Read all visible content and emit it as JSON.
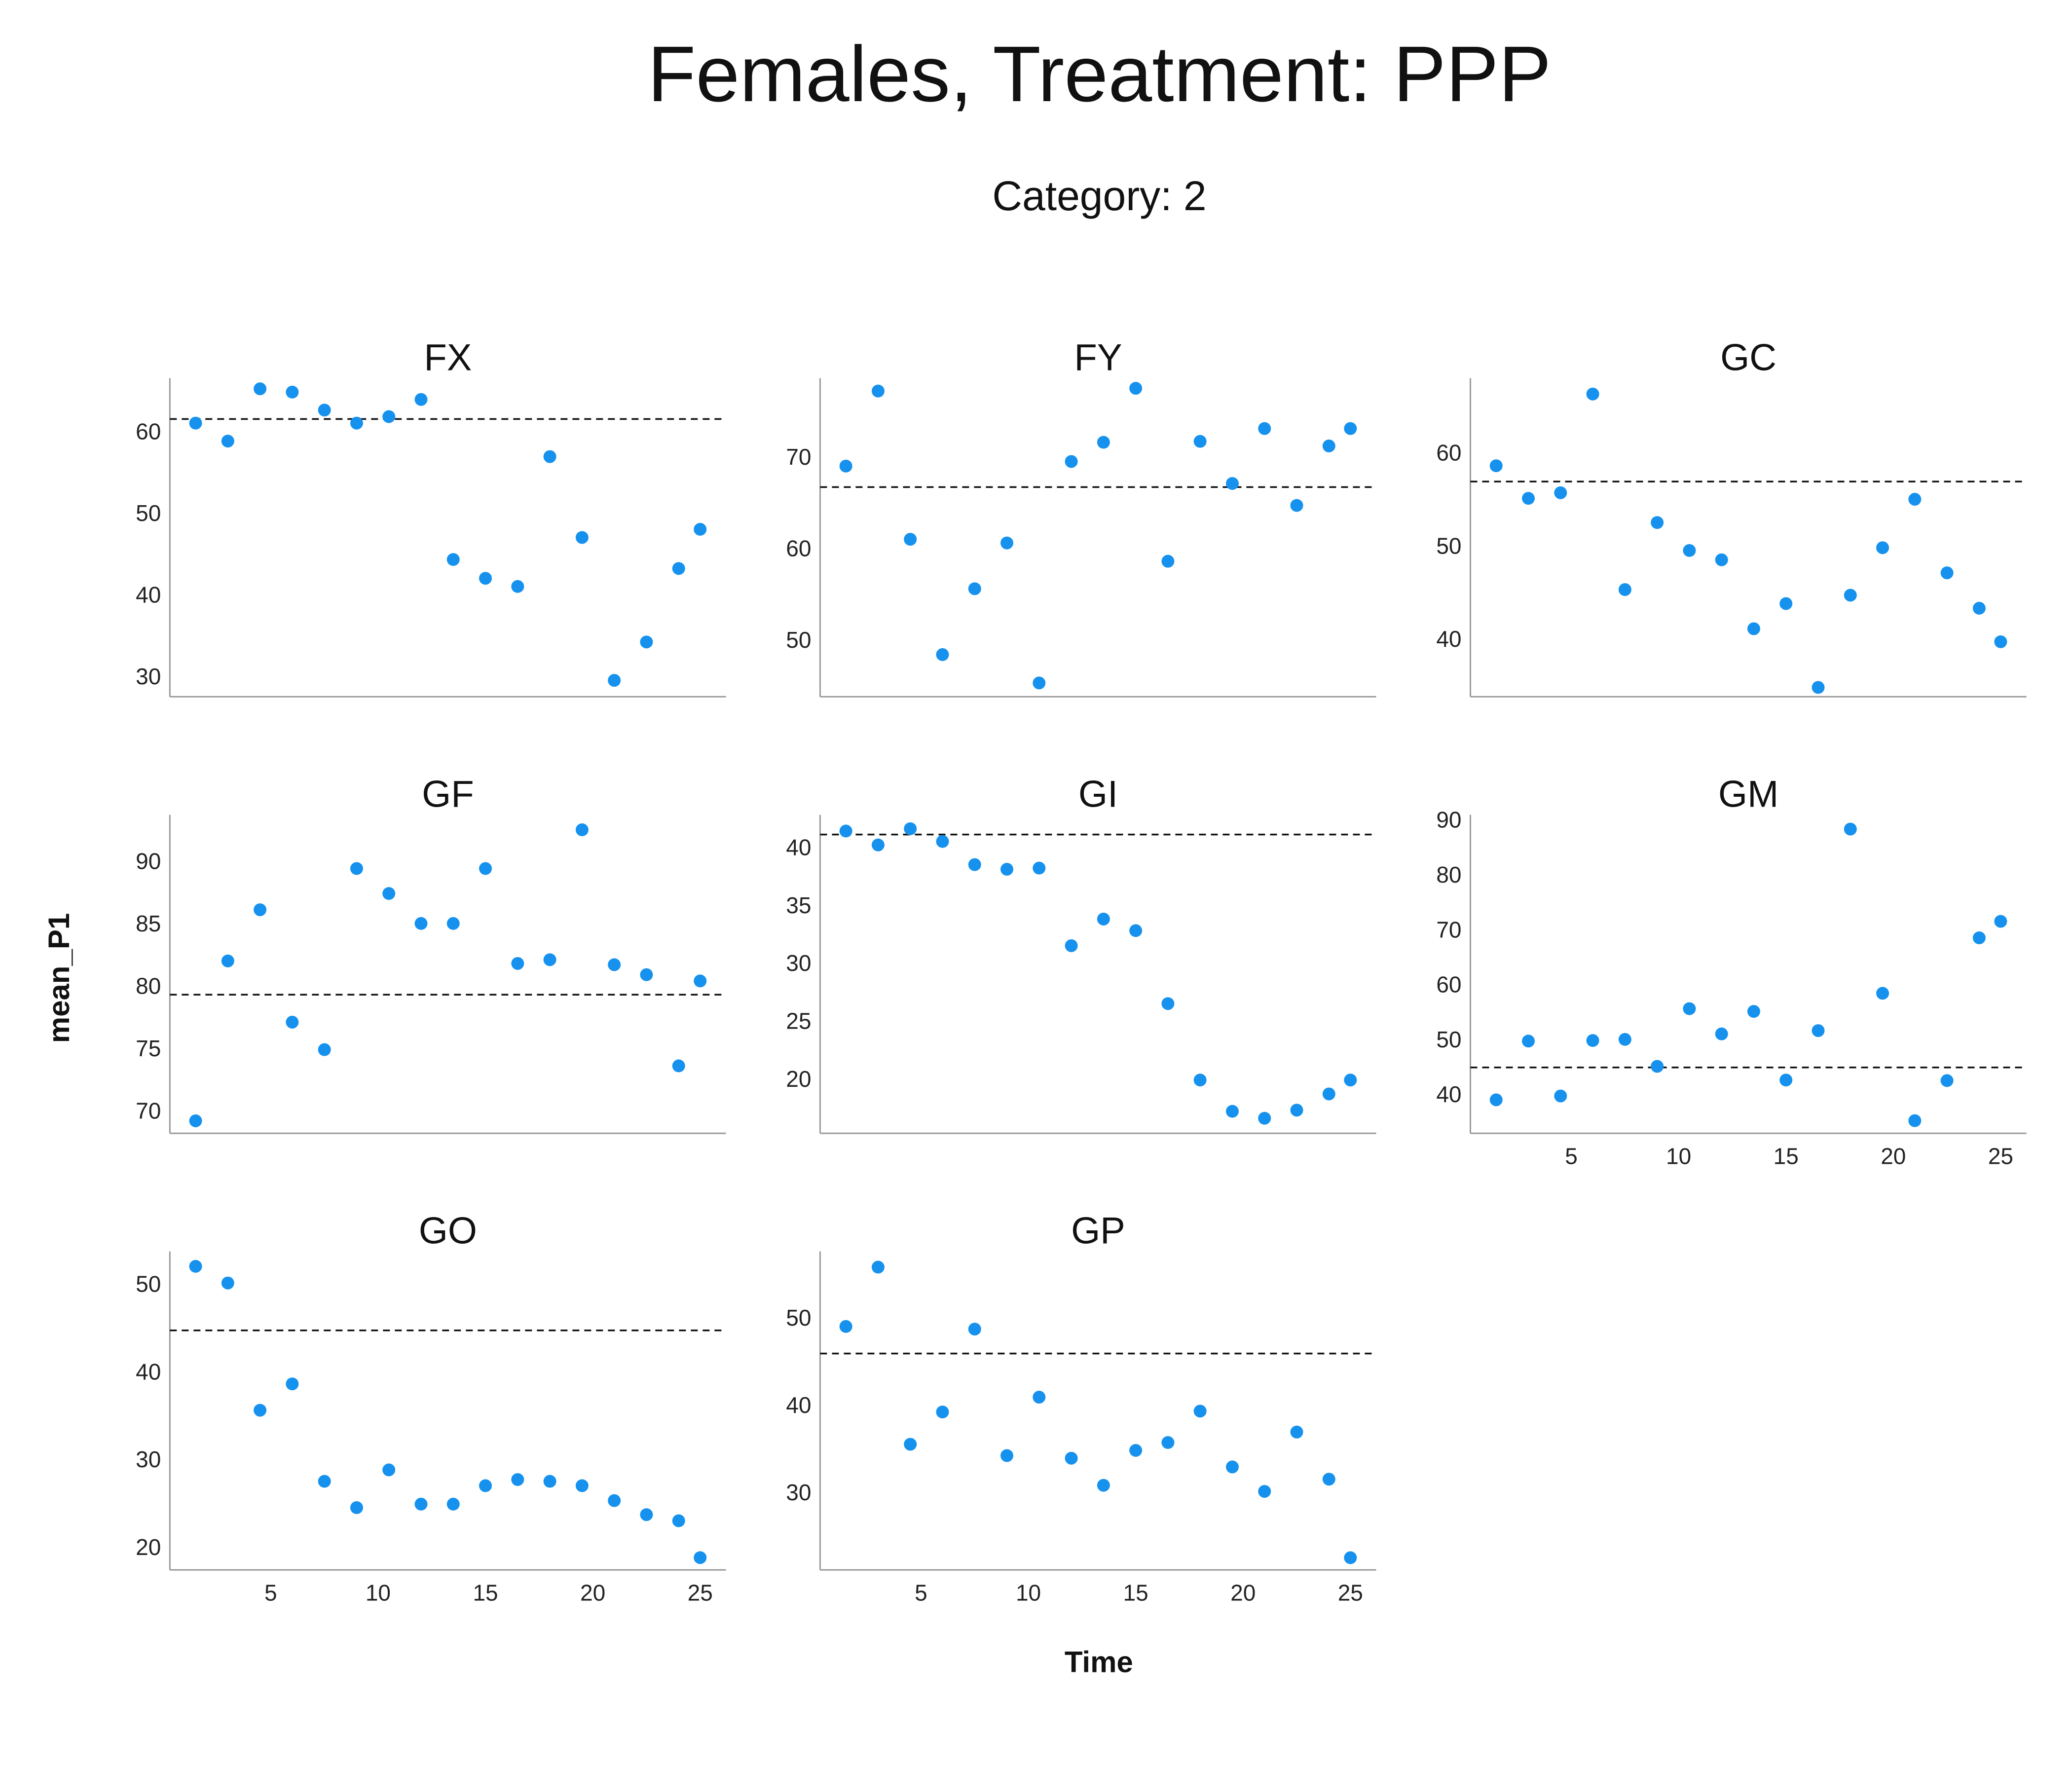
{
  "title": "Females, Treatment: PPP",
  "subtitle": "Category: 2",
  "chart_data": {
    "type": "scatter",
    "xlabel": "Time",
    "ylabel": "mean_P1",
    "xlim": [
      0.3,
      26.2
    ],
    "xticks": [
      5,
      10,
      15,
      20,
      25
    ],
    "point_color": "#1692ee",
    "reference_line": "dashed horizontal line per panel",
    "x": [
      1.5,
      3,
      4.5,
      6,
      7.5,
      9,
      10.5,
      12,
      13.5,
      15,
      16.5,
      18,
      19.5,
      21,
      22.5,
      24,
      25
    ],
    "panels": [
      {
        "name": "FX",
        "ylim": [
          27.5,
          66.5
        ],
        "yticks": [
          30,
          40,
          50,
          60
        ],
        "hline": 61.5,
        "values": [
          61,
          58.8,
          65.2,
          64.8,
          62.6,
          61,
          61.8,
          63.9,
          44.3,
          42,
          41,
          56.9,
          47,
          29.5,
          34.2,
          43.2,
          48
        ]
      },
      {
        "name": "FY",
        "ylim": [
          43.8,
          78.6
        ],
        "yticks": [
          50,
          60,
          70
        ],
        "hline": 66.7,
        "values": [
          69,
          77.2,
          61,
          48.4,
          55.6,
          60.6,
          45.3,
          69.5,
          71.6,
          77.5,
          58.6,
          71.7,
          67.1,
          73.1,
          64.7,
          71.2,
          73.1
        ]
      },
      {
        "name": "GC",
        "ylim": [
          33.8,
          68
        ],
        "yticks": [
          40,
          50,
          60
        ],
        "hline": 56.9,
        "values": [
          58.6,
          55.1,
          55.7,
          66.3,
          45.3,
          52.5,
          49.5,
          48.5,
          41.1,
          43.8,
          34.8,
          44.7,
          49.8,
          55,
          47.1,
          43.3,
          39.7
        ]
      },
      {
        "name": "GF",
        "ylim": [
          68.2,
          93.7
        ],
        "yticks": [
          70,
          75,
          80,
          85,
          90
        ],
        "hline": 79.3,
        "values": [
          69.2,
          82,
          86.1,
          77.1,
          74.9,
          89.4,
          87.4,
          85,
          85,
          89.4,
          81.8,
          82.1,
          92.5,
          81.7,
          80.9,
          73.6,
          80.4
        ]
      },
      {
        "name": "GI",
        "ylim": [
          15.3,
          42.8
        ],
        "yticks": [
          20,
          25,
          30,
          35,
          40
        ],
        "hline": 41.1,
        "values": [
          41.4,
          40.2,
          41.6,
          40.5,
          38.5,
          38.1,
          38.2,
          31.5,
          33.8,
          32.8,
          26.5,
          19.9,
          17.2,
          16.6,
          17.3,
          18.7,
          19.9
        ]
      },
      {
        "name": "GM",
        "ylim": [
          32.9,
          90.9
        ],
        "yticks": [
          40,
          50,
          60,
          70,
          80,
          90
        ],
        "hline": 44.9,
        "values": [
          39,
          49.7,
          39.7,
          49.8,
          50,
          45.1,
          55.6,
          51,
          55.1,
          42.6,
          51.6,
          88.3,
          58.4,
          35.2,
          42.5,
          68.5,
          71.5
        ]
      },
      {
        "name": "GO",
        "ylim": [
          17.4,
          53.7
        ],
        "yticks": [
          20,
          30,
          40,
          50
        ],
        "hline": 44.7,
        "values": [
          52,
          50.1,
          35.6,
          38.6,
          27.5,
          24.5,
          28.8,
          24.9,
          24.9,
          27,
          27.7,
          27.5,
          27,
          25.3,
          23.7,
          23,
          18.8
        ]
      },
      {
        "name": "GP",
        "ylim": [
          21.1,
          57.6
        ],
        "yticks": [
          30,
          40,
          50
        ],
        "hline": 45.9,
        "values": [
          49,
          55.8,
          35.5,
          39.2,
          48.7,
          34.2,
          40.9,
          33.9,
          30.8,
          34.8,
          35.7,
          39.3,
          32.9,
          30.1,
          36.9,
          31.5,
          22.5
        ]
      }
    ]
  }
}
